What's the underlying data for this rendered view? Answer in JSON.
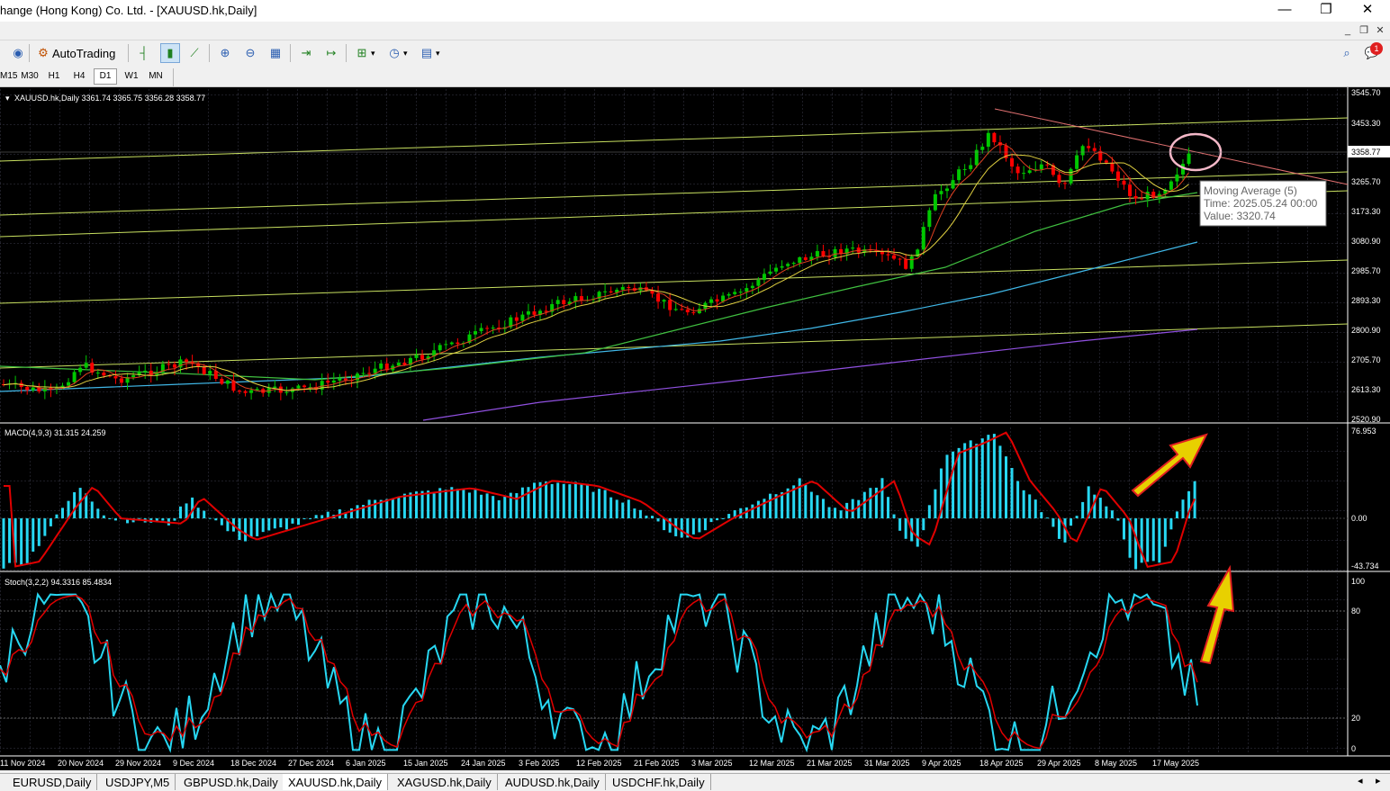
{
  "window": {
    "title": "hange (Hong Kong) Co. Ltd. - [XAUUSD.hk,Daily]",
    "minimize": "—",
    "restore": "❐",
    "close": "✕"
  },
  "toolbar": {
    "autotrading_label": "AutoTrading",
    "icons": [
      "signal-icon",
      "autotrading-icon",
      "bar-chart-icon",
      "candlestick-icon",
      "line-chart-icon",
      "zoom-in-icon",
      "zoom-out-icon",
      "tile-windows-icon",
      "chart-shift-icon",
      "autoscroll-icon",
      "indicators-icon",
      "periods-icon",
      "templates-icon"
    ]
  },
  "notification_count": "1",
  "timeframes": [
    "M15",
    "M30",
    "H1",
    "H4",
    "D1",
    "W1",
    "MN"
  ],
  "active_timeframe": "D1",
  "chart": {
    "symbol_info": "XAUUSD.hk,Daily  3361.74 3365.75 3356.28 3358.77",
    "current_price": "3358.77",
    "price_axis": [
      "3545.70",
      "3453.30",
      "3358.77",
      "3265.70",
      "3173.30",
      "3080.90",
      "2985.70",
      "2893.30",
      "2800.90",
      "2705.70",
      "2613.30",
      "2520.90"
    ],
    "tooltip": {
      "line1": "Moving Average (5)",
      "line2": "Time: 2025.05.24 00:00",
      "line3": "Value: 3320.74"
    },
    "macd_label": "MACD(4,9,3) 31.315 24.259",
    "macd_axis": [
      "76.953",
      "0.00",
      "-43.734"
    ],
    "stoch_label": "Stoch(3,2,2) 94.3316 85.4834",
    "stoch_axis": [
      "100",
      "80",
      "20",
      "0"
    ],
    "date_axis": [
      "11 Nov 2024",
      "20 Nov 2024",
      "29 Nov 2024",
      "9 Dec 2024",
      "18 Dec 2024",
      "27 Dec 2024",
      "6 Jan 2025",
      "15 Jan 2025",
      "24 Jan 2025",
      "3 Feb 2025",
      "12 Feb 2025",
      "21 Feb 2025",
      "3 Mar 2025",
      "12 Mar 2025",
      "21 Mar 2025",
      "31 Mar 2025",
      "9 Apr 2025",
      "18 Apr 2025",
      "29 Apr 2025",
      "8 May 2025",
      "17 May 2025"
    ],
    "colors": {
      "background": "#000000",
      "bull": "#00c800",
      "bear": "#ff0000",
      "macd_hist": "#27d7f2",
      "macd_signal": "#e00000",
      "stoch_main": "#27d7f2",
      "stoch_signal": "#e00000",
      "annotation_arrow": "#e8d000",
      "annotation_circle": "#f4b8c8"
    }
  },
  "tabs": [
    "EURUSD,Daily",
    "USDJPY,M5",
    "GBPUSD.hk,Daily",
    "XAUUSD.hk,Daily",
    "XAGUSD.hk,Daily",
    "AUDUSD.hk,Daily",
    "USDCHF.hk,Daily"
  ],
  "active_tab": "XAUUSD.hk,Daily",
  "tab_scroll_left": "◂",
  "tab_scroll_right": "▸"
}
